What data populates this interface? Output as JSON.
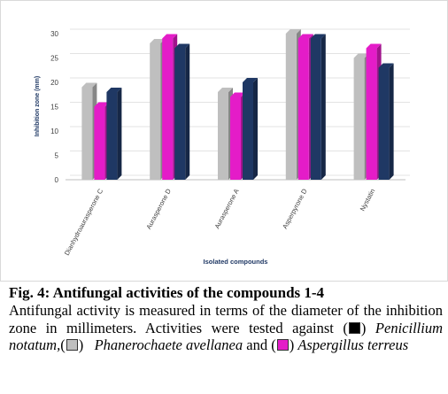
{
  "chart_data": {
    "type": "bar",
    "categories": [
      "Dianhydroaurasperone C",
      "Aurasperone D",
      "Aurasperone A",
      "Asperpyrone D",
      "Nystatin"
    ],
    "series": [
      {
        "values": [
          19,
          28,
          18,
          30,
          25
        ],
        "color": "#bfbfbf"
      },
      {
        "values": [
          15,
          29,
          17,
          29,
          27
        ],
        "color": "#e41cc8"
      },
      {
        "values": [
          18,
          27,
          20,
          29,
          23
        ],
        "color": "#1f3864"
      }
    ],
    "xlabel": "Isolated compounds",
    "ylabel": "Inhibition zone (mm)",
    "ylim": [
      0,
      30
    ],
    "yticks": [
      0,
      5,
      10,
      15,
      20,
      25,
      30
    ],
    "grid": true
  },
  "caption": {
    "title": "Fig. 4: Antifungal activities of the compounds 1-4",
    "line1": "Antifungal activity is measured in terms of the diameter of the inhibition zone in millimeters. Activities were tested against",
    "open_paren_1": "(",
    "close_1": ")",
    "species_1": "Penicillium notatum,",
    "open_paren_2": "(",
    "close_2": ")",
    "species_2": "Phanerochaete avellanea",
    "and_text": "and",
    "open_paren_3": "(",
    "close_3": ")",
    "species_3": "Aspergillus terreus",
    "swatch_colors": [
      "#000000",
      "#bfbfbf",
      "#e41cc8"
    ]
  }
}
